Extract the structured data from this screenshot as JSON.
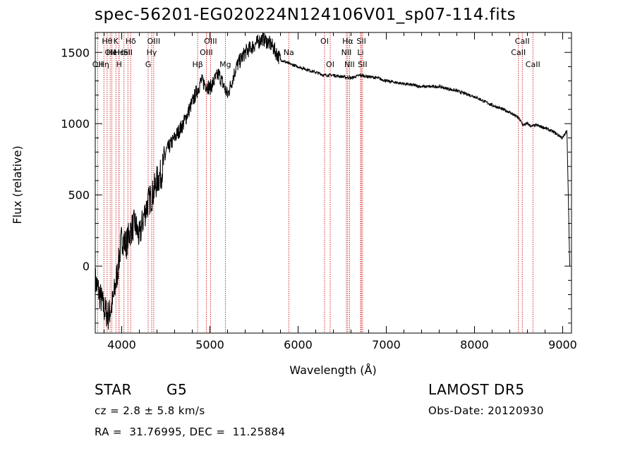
{
  "title": "spec-56201-EG020224N124106V01_sp07-114.fits",
  "info": {
    "object_class": "STAR",
    "subclass": "G5",
    "redshift": "cz = 2.8 ± 5.8 km/s",
    "coords": "RA =  31.76995, DEC =  11.25884",
    "survey": "LAMOST DR5",
    "obs_date": "Obs-Date: 20120930"
  },
  "chart_data": {
    "type": "line",
    "xlabel": "Wavelength (Å)",
    "ylabel": "Flux (relative)",
    "xlim": [
      3700,
      9100
    ],
    "ylim": [
      -470,
      1640
    ],
    "xticks": [
      4000,
      5000,
      6000,
      7000,
      8000,
      9000
    ],
    "yticks": [
      0,
      500,
      1000,
      1500
    ],
    "series": [
      {
        "values_note_free": true,
        "x": [
          3700,
          3750,
          3800,
          3850,
          3900,
          3950,
          4000,
          4050,
          4100,
          4150,
          4200,
          4250,
          4300,
          4350,
          4400,
          4450,
          4500,
          4600,
          4700,
          4800,
          4900,
          5000,
          5100,
          5200,
          5300,
          5400,
          5500,
          5600,
          5700,
          5800,
          5900,
          6000,
          6100,
          6200,
          6300,
          6400,
          6500,
          6600,
          6700,
          6800,
          6900,
          7000,
          7200,
          7400,
          7600,
          7800,
          8000,
          8200,
          8400,
          8500,
          8550,
          8600,
          8650,
          8700,
          8800,
          8900,
          9000,
          9050,
          9080
        ],
        "y": [
          -100,
          -200,
          -300,
          -350,
          -250,
          -50,
          200,
          150,
          250,
          300,
          200,
          350,
          450,
          500,
          600,
          650,
          800,
          900,
          1000,
          1150,
          1300,
          1250,
          1350,
          1200,
          1400,
          1500,
          1550,
          1600,
          1550,
          1450,
          1420,
          1400,
          1380,
          1360,
          1340,
          1340,
          1330,
          1320,
          1340,
          1330,
          1320,
          1300,
          1280,
          1260,
          1260,
          1230,
          1190,
          1130,
          1080,
          1040,
          990,
          1000,
          980,
          990,
          970,
          940,
          900,
          950,
          0
        ]
      }
    ],
    "lines": [
      {
        "wl": 3835,
        "label": "Hθ",
        "row": 1
      },
      {
        "wl": 3869,
        "label": "OII",
        "row": 2
      },
      {
        "wl": 3889,
        "label": "He",
        "row": 2
      },
      {
        "wl": 3727,
        "label": "OII",
        "row": 3
      },
      {
        "wl": 3934,
        "label": "K",
        "row": 1
      },
      {
        "wl": 3970,
        "label": "H",
        "row": 3
      },
      {
        "wl": 3970,
        "label": "Hε",
        "row": 2
      },
      {
        "wl": 4026,
        "label": "HeI",
        "row": 2
      },
      {
        "wl": 4070,
        "label": "SII",
        "row": 2
      },
      {
        "wl": 4102,
        "label": "Hδ",
        "row": 1
      },
      {
        "wl": 3798,
        "label": "Hη",
        "row": 3
      },
      {
        "wl": 4300,
        "label": "G",
        "row": 3
      },
      {
        "wl": 4340,
        "label": "Hγ",
        "row": 2
      },
      {
        "wl": 4363,
        "label": "OIII",
        "row": 1
      },
      {
        "wl": 4861,
        "label": "Hβ",
        "row": 3
      },
      {
        "wl": 4959,
        "label": "OIII",
        "row": 2
      },
      {
        "wl": 5007,
        "label": "OIII",
        "row": 1
      },
      {
        "wl": 5175,
        "label": "Mg",
        "row": 3
      },
      {
        "wl": 5894,
        "label": "Na",
        "row": 2
      },
      {
        "wl": 6300,
        "label": "OI",
        "row": 1
      },
      {
        "wl": 6364,
        "label": "OI",
        "row": 3
      },
      {
        "wl": 6548,
        "label": "NII",
        "row": 2
      },
      {
        "wl": 6563,
        "label": "Hα",
        "row": 1
      },
      {
        "wl": 6583,
        "label": "NII",
        "row": 3
      },
      {
        "wl": 6708,
        "label": "Li",
        "row": 2
      },
      {
        "wl": 6717,
        "label": "SII",
        "row": 1
      },
      {
        "wl": 6731,
        "label": "SII",
        "row": 3
      },
      {
        "wl": 8498,
        "label": "CaII",
        "row": 2
      },
      {
        "wl": 8542,
        "label": "CaII",
        "row": 1
      },
      {
        "wl": 8662,
        "label": "CaII",
        "row": 3
      }
    ],
    "grid": false,
    "colors": {
      "spectrum": "#000000",
      "line_markers": "#cc0000",
      "axes": "#000000"
    }
  }
}
